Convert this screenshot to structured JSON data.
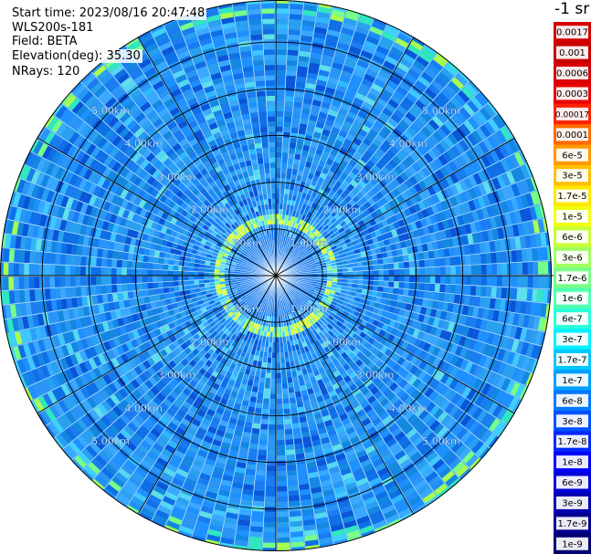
{
  "header": {
    "start_time": "Start time: 2023/08/16 20:47:48",
    "instrument": "WLS200s-181",
    "field": "Field: BETA",
    "elevation": "Elevation(deg): 35.30",
    "nrays": "NRays: 120"
  },
  "colorbar": {
    "title": "-1 sr",
    "ticks": [
      "0.0017",
      "0.001",
      "0.0006",
      "0.0003",
      "0.00017",
      "0.0001",
      "6e-5",
      "3e-5",
      "1.7e-5",
      "1e-5",
      "6e-6",
      "3e-6",
      "1.7e-6",
      "1e-6",
      "6e-7",
      "3e-7",
      "1.7e-7",
      "1e-7",
      "6e-8",
      "3e-8",
      "1.7e-8",
      "1e-8",
      "6e-9",
      "3e-9",
      "1.7e-9",
      "1e-9"
    ],
    "colors": [
      "#d40000",
      "#c80000",
      "#d80000",
      "#e80000",
      "#ff2200",
      "#ff6a00",
      "#ff9a00",
      "#ffc000",
      "#ffe600",
      "#f0ff10",
      "#c8ff38",
      "#a0ff60",
      "#78ff88",
      "#50ffb0",
      "#28ffd8",
      "#00f0ff",
      "#00c8ff",
      "#00a0ff",
      "#0078ff",
      "#0050ff",
      "#0028ff",
      "#0000ff",
      "#0000d8",
      "#0000b0",
      "#000090",
      "#000070"
    ]
  },
  "chart_data": {
    "type": "heatmap",
    "projection": "polar (PPI scan)",
    "n_rays": 120,
    "range_rings_km": [
      "1.00km",
      "2.00km",
      "3.00km",
      "4.00km",
      "5.00km"
    ],
    "max_range_km": 5.9,
    "dominant_backscatter_sr": "about 1e-7",
    "enhanced_ring_range_km": [
      1.05,
      1.35
    ],
    "enhanced_ring_backscatter_sr": "about 3e-6",
    "near_field_backscatter_sr": "about 1e-8",
    "color_scale": "logarithmic, 1e-9 to 0.0017 sr-1"
  }
}
